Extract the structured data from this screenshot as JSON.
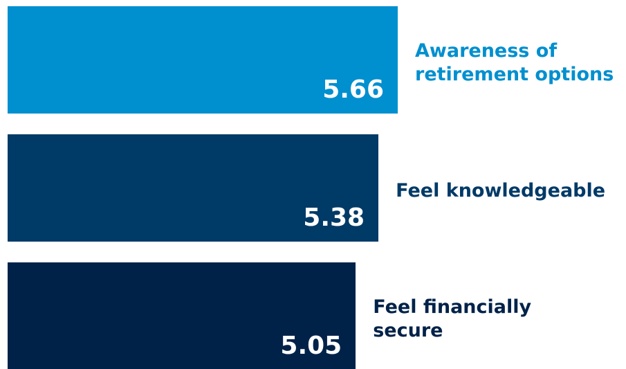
{
  "chart_data": {
    "type": "bar",
    "orientation": "horizontal",
    "categories": [
      "Awareness of retirement options",
      "Feel knowledgeable",
      "Feel financially secure"
    ],
    "values": [
      5.66,
      5.38,
      5.05
    ],
    "colors": [
      "#008fcf",
      "#003a67",
      "#002249"
    ]
  }
}
